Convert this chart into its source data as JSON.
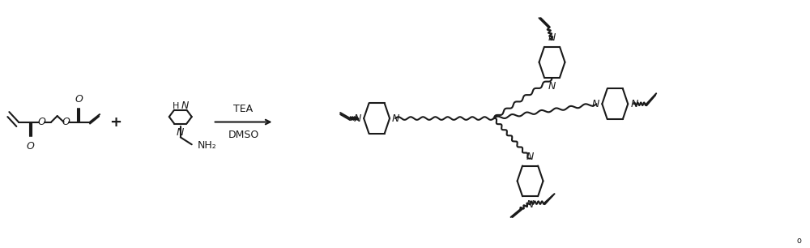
{
  "background": "#ffffff",
  "line_color": "#1a1a1a",
  "line_width": 1.5,
  "font_size": 9,
  "reagents_text": [
    "TEA",
    "DMSO"
  ],
  "small_label": "o"
}
